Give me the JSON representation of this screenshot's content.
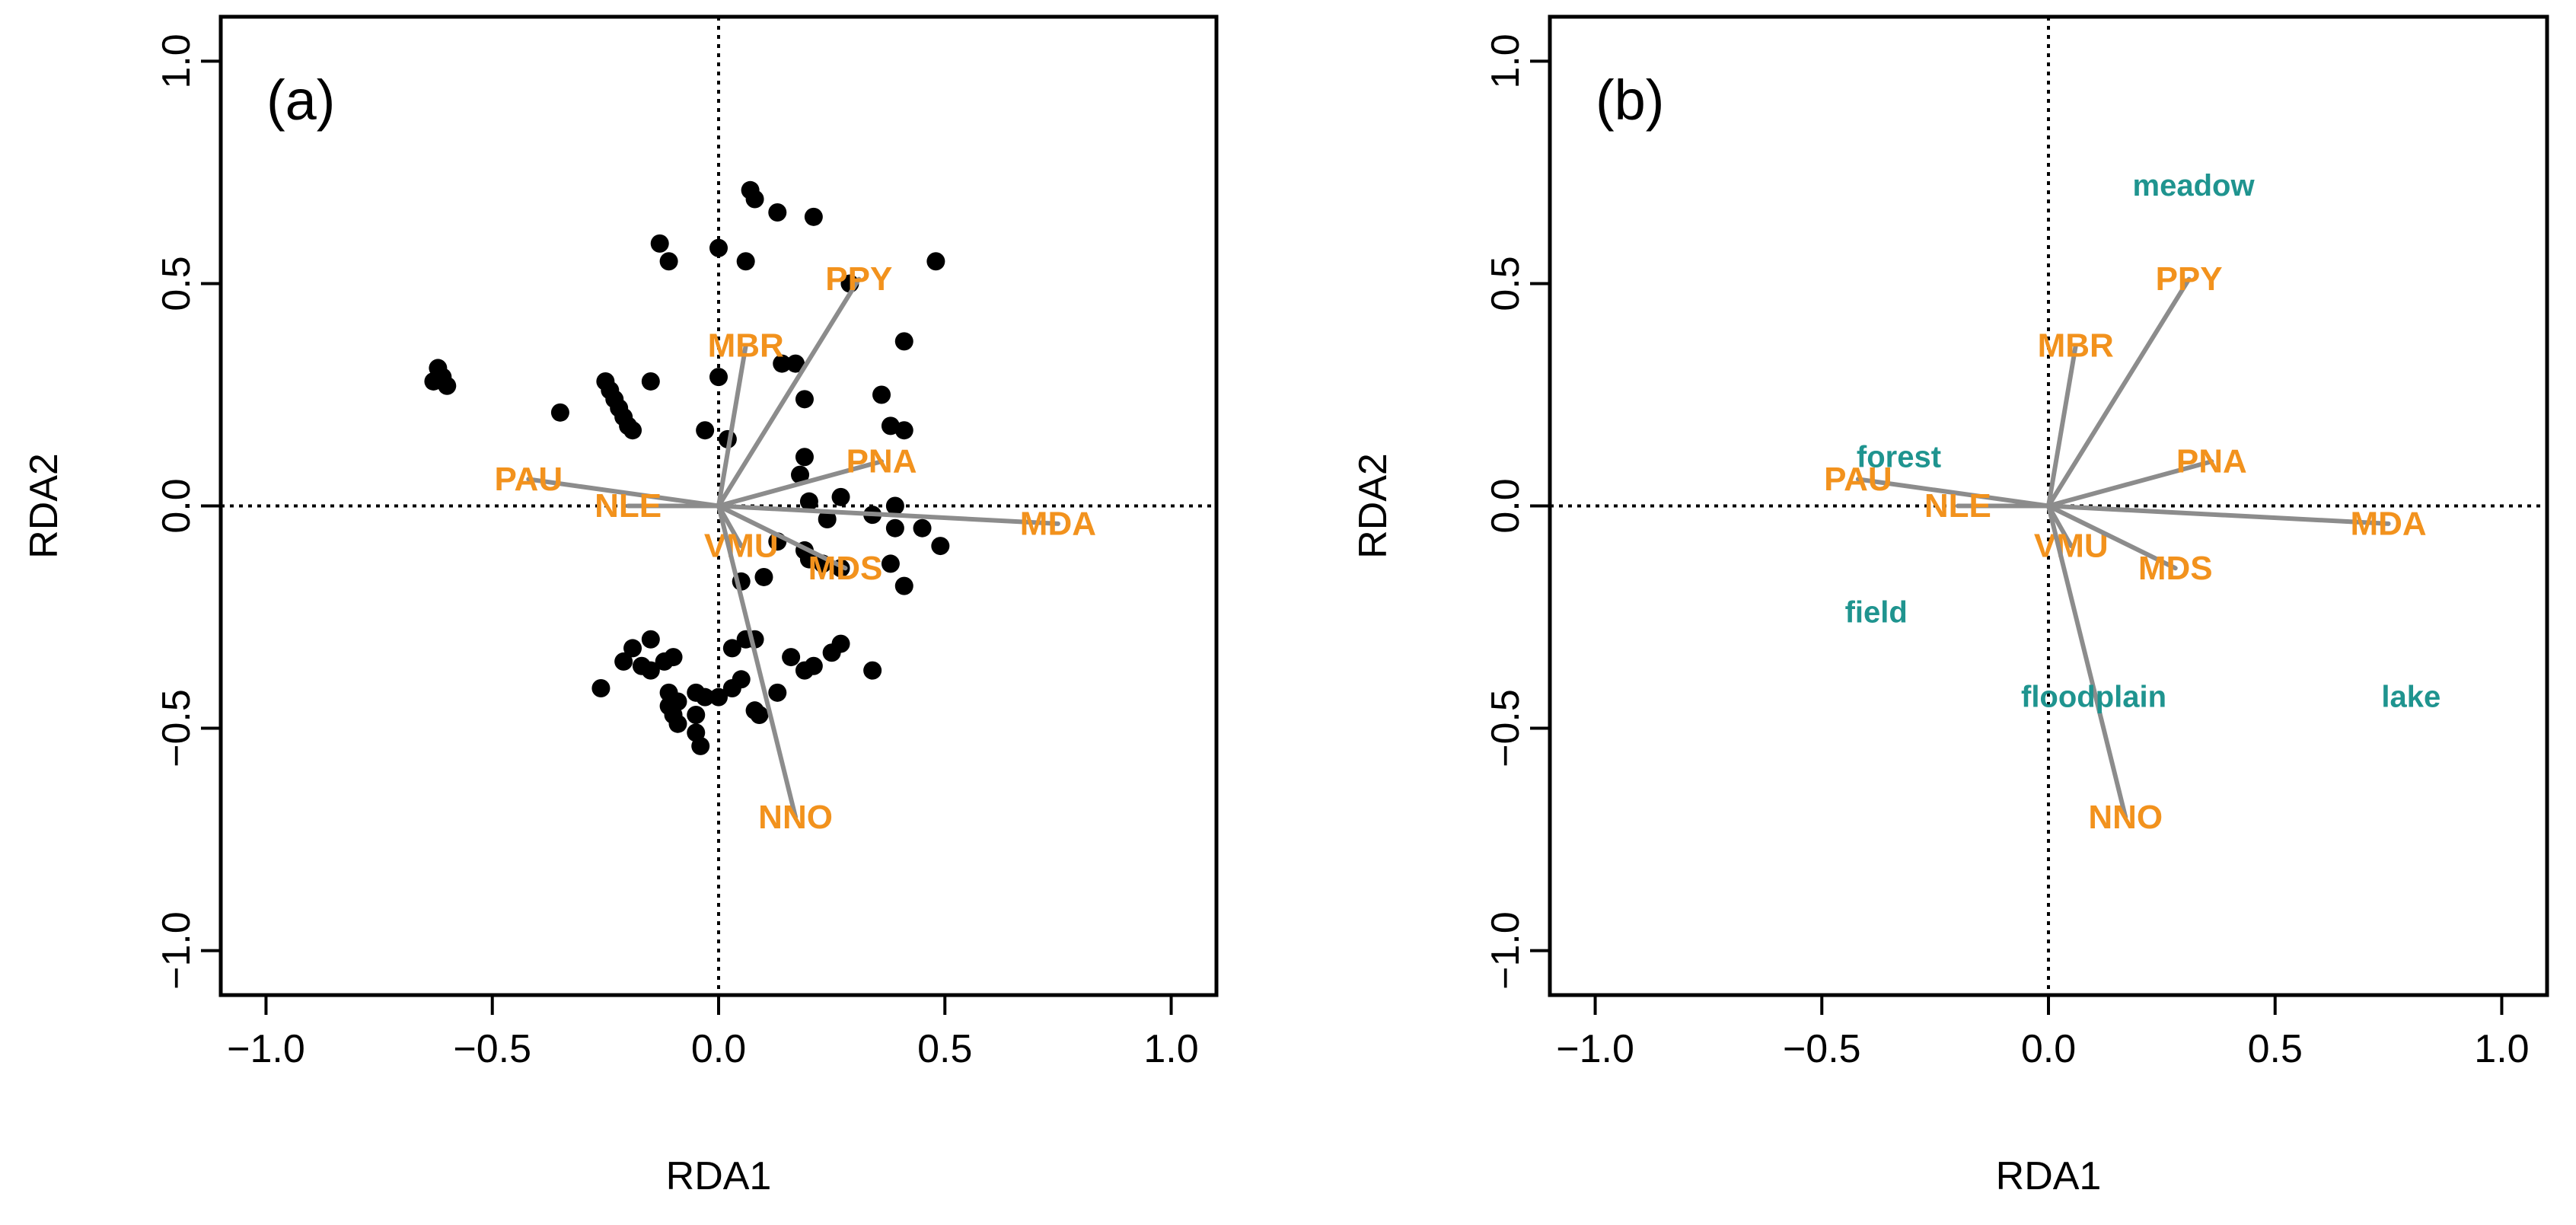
{
  "colors": {
    "species_label": "#f2921d",
    "arrow": "#8c8c8c",
    "site_label": "#1f948f",
    "point": "#000000",
    "axes": "#000000"
  },
  "chart_data": [
    {
      "type": "scatter",
      "panel_label": "(a)",
      "xlabel": "RDA1",
      "ylabel": "RDA2",
      "xlim": [
        -1.1,
        1.1
      ],
      "ylim": [
        -1.1,
        1.1
      ],
      "x_ticks": [
        -1.0,
        -0.5,
        0.0,
        0.5,
        1.0
      ],
      "y_ticks": [
        -1.0,
        -0.5,
        0.0,
        0.5,
        1.0
      ],
      "x_tick_labels": [
        "−1.0",
        "−0.5",
        "0.0",
        "0.5",
        "1.0"
      ],
      "y_tick_labels": [
        "−1.0",
        "−0.5",
        "0.0",
        "0.5",
        "1.0"
      ],
      "zero_lines": true,
      "points": [
        [
          0.07,
          0.71
        ],
        [
          0.08,
          0.69
        ],
        [
          0.13,
          0.66
        ],
        [
          0.21,
          0.65
        ],
        [
          -0.13,
          0.59
        ],
        [
          -0.11,
          0.55
        ],
        [
          0.0,
          0.58
        ],
        [
          0.06,
          0.55
        ],
        [
          0.48,
          0.55
        ],
        [
          0.29,
          0.5
        ],
        [
          -0.62,
          0.31
        ],
        [
          -0.63,
          0.28
        ],
        [
          -0.61,
          0.29
        ],
        [
          -0.6,
          0.27
        ],
        [
          -0.35,
          0.21
        ],
        [
          -0.25,
          0.28
        ],
        [
          -0.24,
          0.26
        ],
        [
          -0.23,
          0.24
        ],
        [
          -0.22,
          0.22
        ],
        [
          -0.21,
          0.2
        ],
        [
          -0.2,
          0.18
        ],
        [
          -0.19,
          0.17
        ],
        [
          -0.15,
          0.28
        ],
        [
          0.0,
          0.29
        ],
        [
          0.14,
          0.32
        ],
        [
          0.17,
          0.32
        ],
        [
          0.19,
          0.24
        ],
        [
          0.19,
          0.11
        ],
        [
          0.18,
          0.07
        ],
        [
          0.41,
          0.37
        ],
        [
          0.36,
          0.25
        ],
        [
          0.38,
          0.18
        ],
        [
          0.41,
          0.17
        ],
        [
          -0.03,
          0.17
        ],
        [
          0.02,
          0.15
        ],
        [
          0.2,
          0.01
        ],
        [
          0.34,
          -0.02
        ],
        [
          0.39,
          0.0
        ],
        [
          0.27,
          0.02
        ],
        [
          0.24,
          -0.03
        ],
        [
          0.39,
          -0.05
        ],
        [
          0.45,
          -0.05
        ],
        [
          0.49,
          -0.09
        ],
        [
          0.13,
          -0.08
        ],
        [
          0.19,
          -0.1
        ],
        [
          0.2,
          -0.12
        ],
        [
          0.23,
          -0.13
        ],
        [
          0.27,
          -0.14
        ],
        [
          0.38,
          -0.13
        ],
        [
          0.41,
          -0.18
        ],
        [
          0.05,
          -0.17
        ],
        [
          0.1,
          -0.16
        ],
        [
          -0.15,
          -0.3
        ],
        [
          -0.19,
          -0.32
        ],
        [
          -0.21,
          -0.35
        ],
        [
          -0.17,
          -0.36
        ],
        [
          -0.15,
          -0.37
        ],
        [
          -0.12,
          -0.35
        ],
        [
          -0.1,
          -0.34
        ],
        [
          -0.26,
          -0.41
        ],
        [
          -0.11,
          -0.42
        ],
        [
          -0.09,
          -0.44
        ],
        [
          -0.11,
          -0.45
        ],
        [
          -0.05,
          -0.42
        ],
        [
          -0.03,
          -0.43
        ],
        [
          0.0,
          -0.43
        ],
        [
          0.03,
          -0.41
        ],
        [
          0.05,
          -0.39
        ],
        [
          -0.1,
          -0.47
        ],
        [
          -0.09,
          -0.49
        ],
        [
          -0.05,
          -0.47
        ],
        [
          -0.05,
          -0.51
        ],
        [
          -0.04,
          -0.54
        ],
        [
          0.08,
          -0.46
        ],
        [
          0.09,
          -0.47
        ],
        [
          0.13,
          -0.42
        ],
        [
          0.16,
          -0.34
        ],
        [
          0.19,
          -0.37
        ],
        [
          0.21,
          -0.36
        ],
        [
          0.25,
          -0.33
        ],
        [
          0.27,
          -0.31
        ],
        [
          0.34,
          -0.37
        ],
        [
          0.03,
          -0.32
        ],
        [
          0.06,
          -0.3
        ],
        [
          0.08,
          -0.3
        ]
      ],
      "species": [
        {
          "name": "PPY",
          "x": 0.31,
          "y": 0.51
        },
        {
          "name": "MBR",
          "x": 0.06,
          "y": 0.36
        },
        {
          "name": "PNA",
          "x": 0.36,
          "y": 0.1
        },
        {
          "name": "PAU",
          "x": -0.42,
          "y": 0.06
        },
        {
          "name": "NLE",
          "x": -0.2,
          "y": 0.0
        },
        {
          "name": "MDA",
          "x": 0.75,
          "y": -0.04
        },
        {
          "name": "VMU",
          "x": 0.05,
          "y": -0.09
        },
        {
          "name": "MDS",
          "x": 0.28,
          "y": -0.14
        },
        {
          "name": "NNO",
          "x": 0.17,
          "y": -0.7
        }
      ]
    },
    {
      "type": "scatter",
      "panel_label": "(b)",
      "xlabel": "RDA1",
      "ylabel": "RDA2",
      "xlim": [
        -1.1,
        1.1
      ],
      "ylim": [
        -1.1,
        1.1
      ],
      "x_ticks": [
        -1.0,
        -0.5,
        0.0,
        0.5,
        1.0
      ],
      "y_ticks": [
        -1.0,
        -0.5,
        0.0,
        0.5,
        1.0
      ],
      "x_tick_labels": [
        "−1.0",
        "−0.5",
        "0.0",
        "0.5",
        "1.0"
      ],
      "y_tick_labels": [
        "−1.0",
        "−0.5",
        "0.0",
        "0.5",
        "1.0"
      ],
      "zero_lines": true,
      "species": [
        {
          "name": "PPY",
          "x": 0.31,
          "y": 0.51
        },
        {
          "name": "MBR",
          "x": 0.06,
          "y": 0.36
        },
        {
          "name": "PNA",
          "x": 0.36,
          "y": 0.1
        },
        {
          "name": "PAU",
          "x": -0.42,
          "y": 0.06
        },
        {
          "name": "NLE",
          "x": -0.2,
          "y": 0.0
        },
        {
          "name": "MDA",
          "x": 0.75,
          "y": -0.04
        },
        {
          "name": "VMU",
          "x": 0.05,
          "y": -0.09
        },
        {
          "name": "MDS",
          "x": 0.28,
          "y": -0.14
        },
        {
          "name": "NNO",
          "x": 0.17,
          "y": -0.7
        }
      ],
      "sites": [
        {
          "name": "meadow",
          "x": 0.32,
          "y": 0.72
        },
        {
          "name": "forest",
          "x": -0.33,
          "y": 0.11
        },
        {
          "name": "field",
          "x": -0.38,
          "y": -0.24
        },
        {
          "name": "floodplain",
          "x": 0.1,
          "y": -0.43
        },
        {
          "name": "lake",
          "x": 0.8,
          "y": -0.43
        }
      ]
    }
  ]
}
